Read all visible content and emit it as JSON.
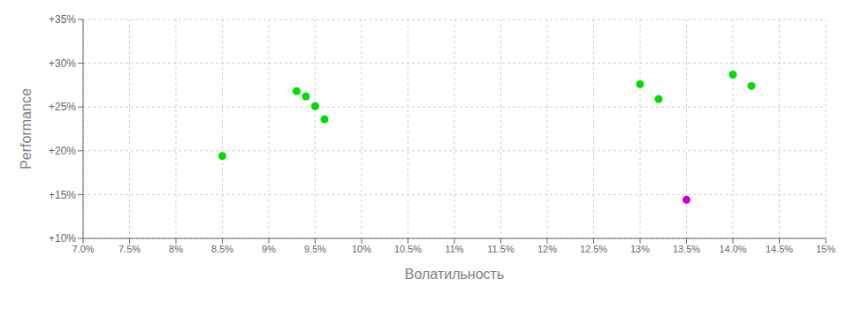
{
  "chart_data": {
    "type": "scatter",
    "xlabel": "Волатильность",
    "ylabel": "Performance",
    "xlim": [
      0.07,
      0.15
    ],
    "ylim": [
      0.1,
      0.35
    ],
    "xticks": [
      {
        "value": 0.07,
        "label": "7.0%"
      },
      {
        "value": 0.075,
        "label": "7.5%"
      },
      {
        "value": 0.08,
        "label": "8%"
      },
      {
        "value": 0.085,
        "label": "8.5%"
      },
      {
        "value": 0.09,
        "label": "9%"
      },
      {
        "value": 0.095,
        "label": "9.5%"
      },
      {
        "value": 0.1,
        "label": "10%"
      },
      {
        "value": 0.105,
        "label": "10.5%"
      },
      {
        "value": 0.11,
        "label": "11%"
      },
      {
        "value": 0.115,
        "label": "11.5%"
      },
      {
        "value": 0.12,
        "label": "12%"
      },
      {
        "value": 0.125,
        "label": "12.5%"
      },
      {
        "value": 0.13,
        "label": "13%"
      },
      {
        "value": 0.135,
        "label": "13.5%"
      },
      {
        "value": 0.14,
        "label": "14.0%"
      },
      {
        "value": 0.145,
        "label": "14.5%"
      },
      {
        "value": 0.15,
        "label": "15%"
      }
    ],
    "yticks": [
      {
        "value": 0.1,
        "label": "+10%"
      },
      {
        "value": 0.15,
        "label": "+15%"
      },
      {
        "value": 0.2,
        "label": "+20%"
      },
      {
        "value": 0.25,
        "label": "+25%"
      },
      {
        "value": 0.3,
        "label": "+30%"
      },
      {
        "value": 0.35,
        "label": "+35%"
      }
    ],
    "grid": true,
    "series": [
      {
        "color": "#00dd00",
        "x": [
          0.085,
          0.093,
          0.094,
          0.095,
          0.096,
          0.13,
          0.132,
          0.14,
          0.142
        ],
        "values": [
          0.194,
          0.268,
          0.262,
          0.251,
          0.236,
          0.276,
          0.259,
          0.287,
          0.274
        ]
      },
      {
        "color": "#cc00cc",
        "x": [
          0.135
        ],
        "values": [
          0.144
        ]
      }
    ]
  }
}
